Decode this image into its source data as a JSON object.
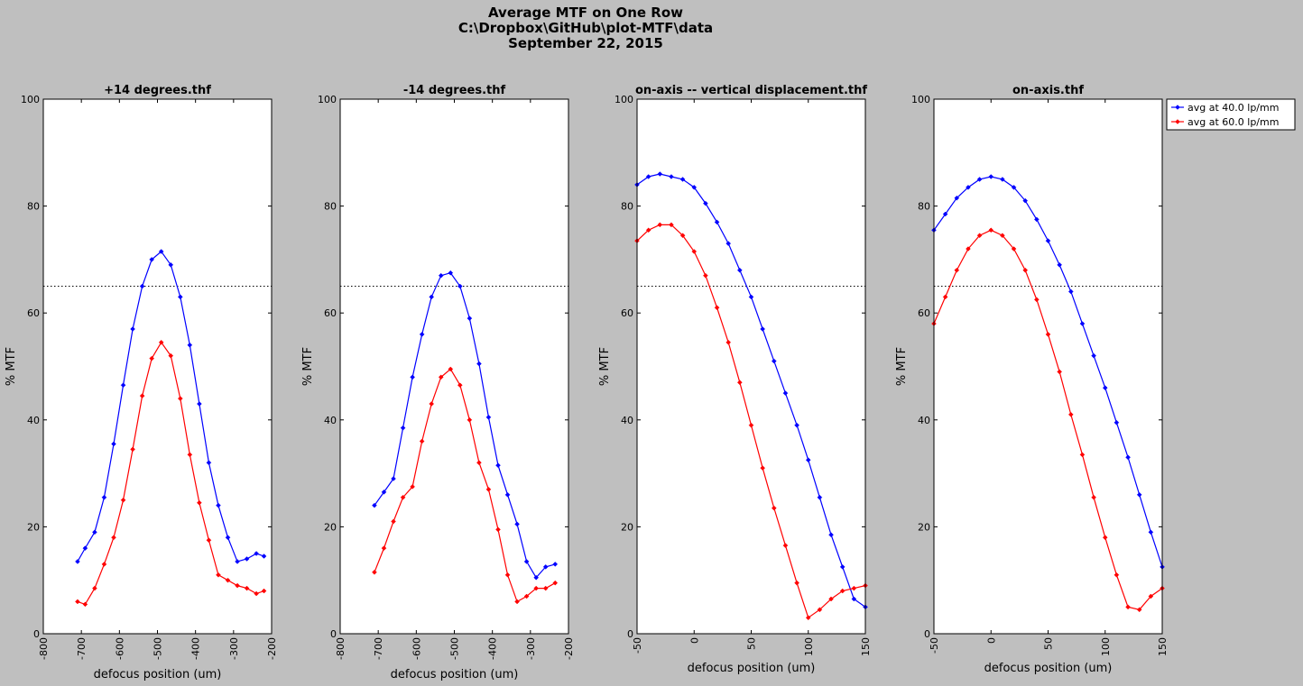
{
  "figure": {
    "title_lines": [
      "Average MTF on One Row",
      "C:\\Dropbox\\GitHub\\plot-MTF\\data",
      "September 22, 2015"
    ],
    "background": "#bfbfbf"
  },
  "legend": {
    "placement": "outside-right",
    "entries": [
      "avg at 40.0 lp/mm",
      "avg at 60.0 lp/mm"
    ]
  },
  "chart_data": [
    {
      "type": "line",
      "title": "+14 degrees.thf",
      "xlabel": "defocus position (um)",
      "ylabel": "% MTF",
      "xlim": [
        -800,
        -200
      ],
      "ylim": [
        0,
        100
      ],
      "xticks": [
        -800,
        -700,
        -600,
        -500,
        -400,
        -300,
        -200
      ],
      "yticks": [
        0,
        20,
        40,
        60,
        80,
        100
      ],
      "threshold": 65,
      "x": [
        -710,
        -690,
        -665,
        -640,
        -615,
        -590,
        -565,
        -540,
        -515,
        -490,
        -465,
        -440,
        -415,
        -390,
        -365,
        -340,
        -315,
        -290,
        -265,
        -240,
        -220
      ],
      "series": [
        {
          "name": "avg at 40.0 lp/mm",
          "color": "#0000ff",
          "values": [
            13.5,
            16,
            19,
            25.5,
            35.5,
            46.5,
            57,
            65,
            70,
            71.5,
            69,
            63,
            54,
            43,
            32,
            24,
            18,
            13.5,
            14,
            15,
            14.5
          ]
        },
        {
          "name": "avg at 60.0 lp/mm",
          "color": "#ff0000",
          "values": [
            6,
            5.5,
            8.5,
            13,
            18,
            25,
            34.5,
            44.5,
            51.5,
            54.5,
            52,
            44,
            33.5,
            24.5,
            17.5,
            11,
            10,
            9,
            8.5,
            7.5,
            8
          ]
        }
      ]
    },
    {
      "type": "line",
      "title": "-14 degrees.thf",
      "xlabel": "defocus position (um)",
      "ylabel": "% MTF",
      "xlim": [
        -800,
        -200
      ],
      "ylim": [
        0,
        100
      ],
      "xticks": [
        -800,
        -700,
        -600,
        -500,
        -400,
        -300,
        -200
      ],
      "yticks": [
        0,
        20,
        40,
        60,
        80,
        100
      ],
      "threshold": 65,
      "x": [
        -710,
        -685,
        -660,
        -635,
        -610,
        -585,
        -560,
        -535,
        -510,
        -485,
        -460,
        -435,
        -410,
        -385,
        -360,
        -335,
        -310,
        -285,
        -260,
        -235
      ],
      "series": [
        {
          "name": "avg at 40.0 lp/mm",
          "color": "#0000ff",
          "values": [
            24,
            26.5,
            29,
            38.5,
            48,
            56,
            63,
            67,
            67.5,
            65,
            59,
            50.5,
            40.5,
            31.5,
            26,
            20.5,
            13.5,
            10.5,
            12.5,
            13
          ]
        },
        {
          "name": "avg at 60.0 lp/mm",
          "color": "#ff0000",
          "values": [
            11.5,
            16,
            21,
            25.5,
            27.5,
            36,
            43,
            48,
            49.5,
            46.5,
            40,
            32,
            27,
            19.5,
            11,
            6,
            7,
            8.5,
            8.5,
            9.5
          ]
        }
      ]
    },
    {
      "type": "line",
      "title": "on-axis -- vertical displacement.thf",
      "xlabel": "defocus position (um)",
      "ylabel": "% MTF",
      "xlim": [
        -50,
        150
      ],
      "ylim": [
        0,
        100
      ],
      "xticks": [
        -50,
        0,
        50,
        100,
        150
      ],
      "yticks": [
        0,
        20,
        40,
        60,
        80,
        100
      ],
      "threshold": 65,
      "x": [
        -50,
        -40,
        -30,
        -20,
        -10,
        0,
        10,
        20,
        30,
        40,
        50,
        60,
        70,
        80,
        90,
        100,
        110,
        120,
        130,
        140,
        150
      ],
      "series": [
        {
          "name": "avg at 40.0 lp/mm",
          "color": "#0000ff",
          "values": [
            84,
            85.5,
            86,
            85.5,
            85,
            83.5,
            80.5,
            77,
            73,
            68,
            63,
            57,
            51,
            45,
            39,
            32.5,
            25.5,
            18.5,
            12.5,
            6.5,
            5
          ]
        },
        {
          "name": "avg at 60.0 lp/mm",
          "color": "#ff0000",
          "values": [
            73.5,
            75.5,
            76.5,
            76.5,
            74.5,
            71.5,
            67,
            61,
            54.5,
            47,
            39,
            31,
            23.5,
            16.5,
            9.5,
            3,
            4.5,
            6.5,
            8,
            8.5,
            9
          ]
        }
      ]
    },
    {
      "type": "line",
      "title": "on-axis.thf",
      "xlabel": "defocus position (um)",
      "ylabel": "% MTF",
      "xlim": [
        -50,
        150
      ],
      "ylim": [
        0,
        100
      ],
      "xticks": [
        -50,
        0,
        50,
        100,
        150
      ],
      "yticks": [
        0,
        20,
        40,
        60,
        80,
        100
      ],
      "threshold": 65,
      "x": [
        -50,
        -40,
        -30,
        -20,
        -10,
        0,
        10,
        20,
        30,
        40,
        50,
        60,
        70,
        80,
        90,
        100,
        110,
        120,
        130,
        140,
        150
      ],
      "series": [
        {
          "name": "avg at 40.0 lp/mm",
          "color": "#0000ff",
          "values": [
            75.5,
            78.5,
            81.5,
            83.5,
            85,
            85.5,
            85,
            83.5,
            81,
            77.5,
            73.5,
            69,
            64,
            58,
            52,
            46,
            39.5,
            33,
            26,
            19,
            12.5
          ]
        },
        {
          "name": "avg at 60.0 lp/mm",
          "color": "#ff0000",
          "values": [
            58,
            63,
            68,
            72,
            74.5,
            75.5,
            74.5,
            72,
            68,
            62.5,
            56,
            49,
            41,
            33.5,
            25.5,
            18,
            11,
            5,
            4.5,
            7,
            8.5
          ]
        }
      ]
    }
  ]
}
